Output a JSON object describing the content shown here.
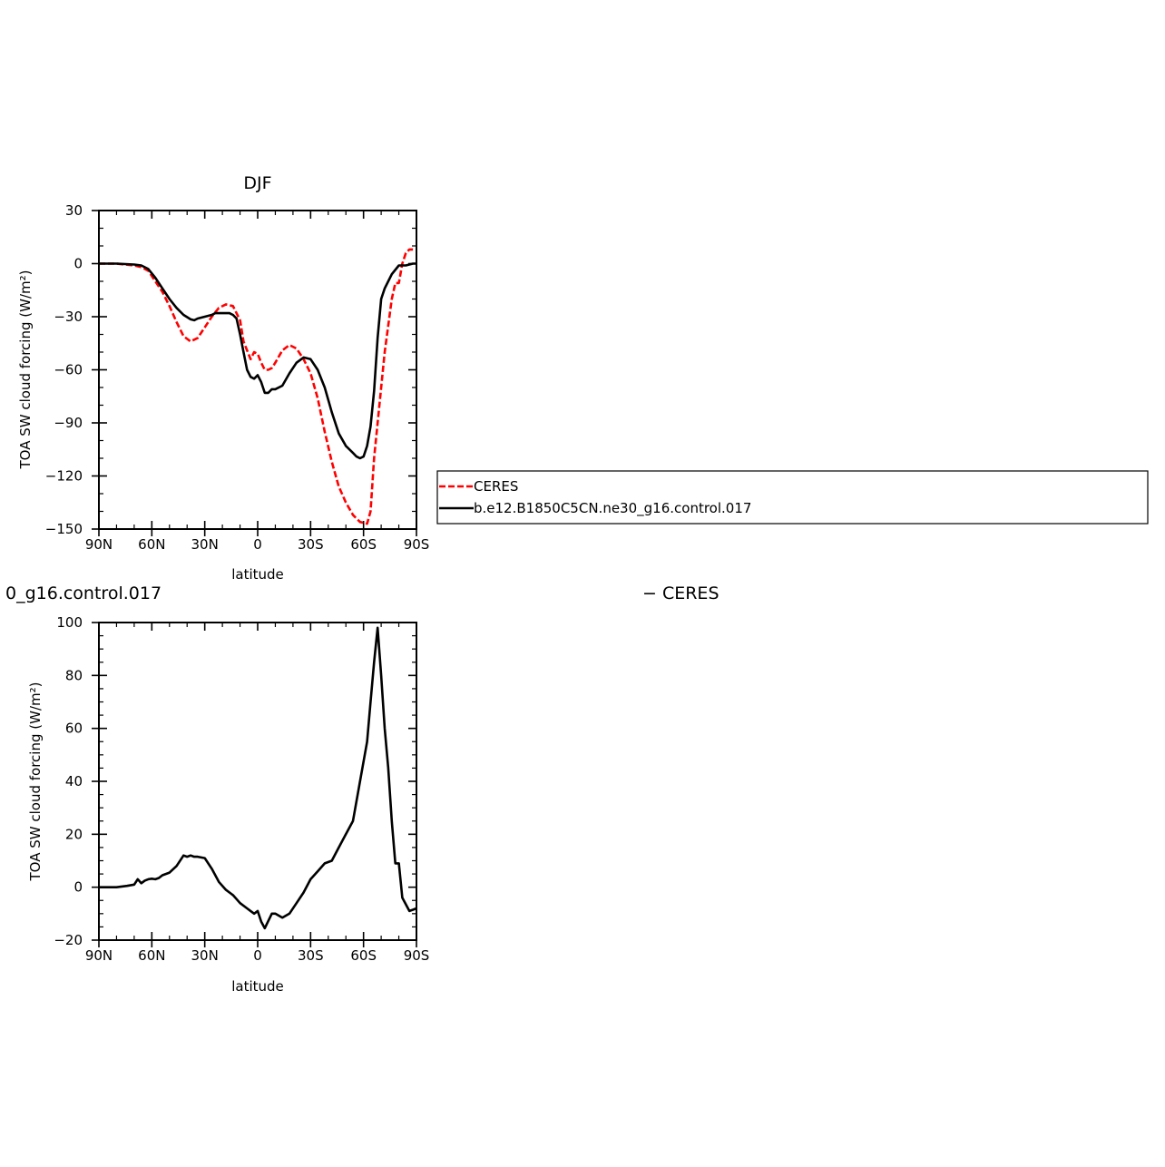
{
  "chart_data": [
    {
      "type": "line",
      "title": "DJF",
      "xlabel": "latitude",
      "ylabel": "TOA SW cloud forcing (W/m²)",
      "ylim": [
        -150,
        30
      ],
      "yticks": [
        30,
        0,
        -30,
        -60,
        -90,
        -120,
        -150
      ],
      "xlim": [
        90,
        -90
      ],
      "xticks": [
        90,
        60,
        30,
        0,
        -30,
        -60,
        -90
      ],
      "xtick_labels": [
        "90N",
        "60N",
        "30N",
        "0",
        "30S",
        "60S",
        "90S"
      ],
      "legend_position": "right",
      "series": [
        {
          "name": "CERES",
          "color": "#ff0000",
          "dash": "dashed",
          "x": [
            90,
            80,
            70,
            66,
            62,
            58,
            54,
            50,
            46,
            42,
            38,
            34,
            30,
            26,
            22,
            18,
            14,
            10,
            8,
            6,
            4,
            2,
            0,
            -2,
            -4,
            -6,
            -8,
            -10,
            -14,
            -18,
            -22,
            -26,
            -30,
            -34,
            -38,
            -42,
            -46,
            -50,
            -54,
            -58,
            -62,
            -64,
            -66,
            -68,
            -70,
            -72,
            -74,
            -76,
            -78,
            -80,
            -82,
            -84,
            -86,
            -88
          ],
          "y": [
            0,
            0,
            -1,
            -2,
            -4,
            -10,
            -16,
            -24,
            -33,
            -41,
            -44,
            -42,
            -36,
            -30,
            -25,
            -23,
            -24,
            -32,
            -44,
            -49,
            -54,
            -50,
            -51,
            -56,
            -60,
            -60,
            -59,
            -56,
            -49,
            -46,
            -48,
            -54,
            -62,
            -76,
            -95,
            -112,
            -126,
            -135,
            -142,
            -146,
            -147,
            -140,
            -110,
            -90,
            -70,
            -50,
            -35,
            -20,
            -11,
            -11,
            0,
            6,
            8,
            8
          ]
        },
        {
          "name": "b.e12.B1850C5CN.ne30_g16.control.017",
          "color": "#000000",
          "dash": "solid",
          "x": [
            90,
            80,
            70,
            66,
            62,
            58,
            54,
            50,
            46,
            42,
            38,
            36,
            34,
            30,
            26,
            24,
            20,
            16,
            14,
            12,
            10,
            8,
            6,
            4,
            2,
            0,
            -2,
            -4,
            -6,
            -8,
            -10,
            -14,
            -18,
            -22,
            -26,
            -30,
            -34,
            -38,
            -42,
            -46,
            -50,
            -54,
            -56,
            -58,
            -60,
            -62,
            -64,
            -66,
            -68,
            -70,
            -72,
            -74,
            -76,
            -80,
            -84,
            -88,
            -90
          ],
          "y": [
            0,
            0,
            -0.5,
            -1,
            -3,
            -8,
            -14,
            -20,
            -25,
            -29,
            -31.5,
            -32,
            -31,
            -30,
            -29,
            -28,
            -28,
            -28,
            -29,
            -31,
            -40,
            -50,
            -60,
            -64,
            -65,
            -63,
            -67,
            -73,
            -73,
            -71,
            -71,
            -69,
            -62,
            -56,
            -53,
            -54,
            -60,
            -70,
            -84,
            -96,
            -103,
            -107,
            -109,
            -110,
            -109,
            -103,
            -92,
            -72,
            -42,
            -20,
            -14,
            -10,
            -6,
            -1,
            -1,
            0,
            0
          ]
        }
      ]
    },
    {
      "type": "line",
      "title_fragments": [
        "0_g16.control.017",
        "− CERES"
      ],
      "xlabel": "latitude",
      "ylabel": "TOA SW cloud forcing (W/m²)",
      "ylim": [
        -20,
        100
      ],
      "yticks": [
        100,
        80,
        60,
        40,
        20,
        0,
        -20
      ],
      "xlim": [
        90,
        -90
      ],
      "xticks": [
        90,
        60,
        30,
        0,
        -30,
        -60,
        -90
      ],
      "xtick_labels": [
        "90N",
        "60N",
        "30N",
        "0",
        "30S",
        "60S",
        "90S"
      ],
      "series": [
        {
          "color": "#000000",
          "dash": "solid",
          "x": [
            90,
            80,
            74,
            70,
            68,
            66,
            64,
            62,
            60,
            58,
            56,
            54,
            50,
            46,
            42,
            40,
            38,
            36,
            34,
            30,
            26,
            22,
            18,
            14,
            10,
            6,
            4,
            2,
            0,
            -2,
            -4,
            -8,
            -10,
            -14,
            -18,
            -22,
            -26,
            -30,
            -34,
            -38,
            -42,
            -46,
            -50,
            -54,
            -58,
            -62,
            -64,
            -66,
            -68,
            -70,
            -72,
            -74,
            -76,
            -78,
            -80,
            -82,
            -86,
            -88,
            -90
          ],
          "y": [
            0,
            0,
            0.5,
            1,
            3,
            1.5,
            2.5,
            3,
            3.2,
            3,
            3.5,
            4.5,
            5.5,
            8,
            12,
            11.5,
            12,
            11.5,
            11.5,
            11,
            7,
            2,
            -1,
            -3,
            -6,
            -8,
            -9,
            -10,
            -9,
            -13,
            -15.5,
            -10,
            -10,
            -11.5,
            -10,
            -6,
            -2,
            3,
            6,
            9,
            10,
            15,
            20,
            25,
            40,
            55,
            70,
            85,
            98,
            80,
            60,
            45,
            25,
            9,
            9,
            -4,
            -9,
            -8.5,
            -8
          ]
        }
      ]
    }
  ],
  "legend": {
    "entries": [
      "CERES",
      "b.e12.B1850C5CN.ne30_g16.control.017"
    ]
  }
}
